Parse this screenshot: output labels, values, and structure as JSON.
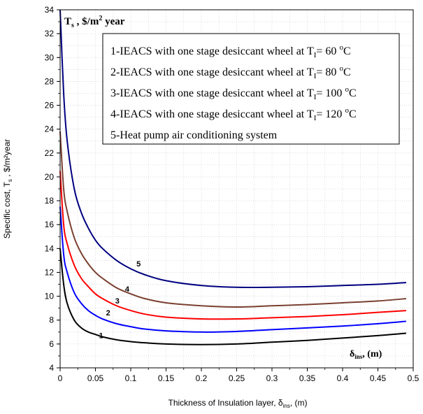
{
  "chart_data": {
    "type": "line",
    "title": "T",
    "title_sub": "s",
    "title_rest": " , $/m",
    "title_sup": "2",
    "title_end": " year",
    "xlabel": "Thickness of Insulation layer, δ",
    "xlabel_sub": "ins",
    "xlabel_end": ", (m)",
    "ylabel": "Specific cost, T",
    "ylabel_sub": "s",
    "ylabel_end": " , $/m²year",
    "inner_xlabel": "δ",
    "inner_xlabel_sub": "ins",
    "inner_xlabel_end": ", (m)",
    "xlim": [
      0,
      0.5
    ],
    "ylim": [
      4,
      34
    ],
    "x_ticks": [
      0,
      0.05,
      0.1,
      0.15,
      0.2,
      0.25,
      0.3,
      0.35,
      0.4,
      0.45,
      0.5
    ],
    "x_tick_labels": [
      "0",
      "0.05",
      "0.1",
      "0.15",
      "0.2",
      "0.25",
      "0.3",
      "0.35",
      "0.4",
      "0.45",
      "0.5"
    ],
    "y_ticks": [
      4,
      6,
      8,
      10,
      12,
      14,
      16,
      18,
      20,
      22,
      24,
      26,
      28,
      30,
      32,
      34
    ],
    "y_tick_labels": [
      "4",
      "6",
      "8",
      "10",
      "12",
      "14",
      "16",
      "18",
      "20",
      "22",
      "24",
      "26",
      "28",
      "30",
      "32",
      "34"
    ],
    "grid": true,
    "legend_position": "top-right",
    "legend": [
      {
        "pre": "1-IEACS with one stage desiccant wheel at T",
        "sub": "I",
        "mid": "= 60 ",
        "sup": "o",
        "post": "C"
      },
      {
        "pre": "2-IEACS with one stage desiccant wheel at T",
        "sub": "I",
        "mid": "= 80 ",
        "sup": "o",
        "post": "C"
      },
      {
        "pre": "3-IEACS with one stage desiccant wheel at T",
        "sub": "I",
        "mid": "= 100 ",
        "sup": "o",
        "post": "C"
      },
      {
        "pre": "4-IEACS with one stage desiccant wheel at T",
        "sub": "I",
        "mid": "= 120 ",
        "sup": "o",
        "post": "C"
      },
      {
        "pre": "5-Heat pump air conditioning system",
        "sub": "",
        "mid": "",
        "sup": "",
        "post": ""
      }
    ],
    "series": [
      {
        "label": "1",
        "color": "#000000",
        "label_at": [
          0.055,
          6.5
        ],
        "x": [
          0,
          0.005,
          0.01,
          0.02,
          0.03,
          0.04,
          0.05,
          0.06,
          0.08,
          0.1,
          0.12,
          0.15,
          0.2,
          0.25,
          0.3,
          0.35,
          0.4,
          0.45,
          0.49
        ],
        "y": [
          14.0,
          11.0,
          9.4,
          8.0,
          7.35,
          7.0,
          6.8,
          6.6,
          6.35,
          6.2,
          6.1,
          6.0,
          5.95,
          6.0,
          6.15,
          6.3,
          6.5,
          6.7,
          6.9
        ]
      },
      {
        "label": "2",
        "color": "#0000ff",
        "label_at": [
          0.065,
          8.4
        ],
        "x": [
          0,
          0.005,
          0.01,
          0.02,
          0.03,
          0.04,
          0.05,
          0.06,
          0.08,
          0.1,
          0.12,
          0.15,
          0.2,
          0.25,
          0.3,
          0.35,
          0.4,
          0.45,
          0.49
        ],
        "y": [
          17.5,
          13.5,
          12.0,
          10.3,
          9.4,
          8.8,
          8.4,
          8.1,
          7.7,
          7.45,
          7.25,
          7.1,
          7.0,
          7.05,
          7.2,
          7.35,
          7.5,
          7.7,
          7.9
        ]
      },
      {
        "label": "3",
        "color": "#ff0000",
        "label_at": [
          0.078,
          9.4
        ],
        "x": [
          0,
          0.005,
          0.01,
          0.02,
          0.03,
          0.04,
          0.05,
          0.06,
          0.08,
          0.1,
          0.12,
          0.15,
          0.2,
          0.25,
          0.3,
          0.35,
          0.4,
          0.45,
          0.49
        ],
        "y": [
          20.5,
          16.0,
          14.4,
          12.6,
          11.5,
          10.8,
          10.2,
          9.8,
          9.2,
          8.8,
          8.5,
          8.25,
          8.1,
          8.1,
          8.2,
          8.3,
          8.45,
          8.65,
          8.8
        ]
      },
      {
        "label": "4",
        "color": "#7a4030",
        "label_at": [
          0.092,
          10.4
        ],
        "x": [
          0,
          0.005,
          0.01,
          0.02,
          0.03,
          0.04,
          0.05,
          0.06,
          0.08,
          0.1,
          0.12,
          0.15,
          0.2,
          0.25,
          0.3,
          0.35,
          0.4,
          0.45,
          0.49
        ],
        "y": [
          23.8,
          19.0,
          17.1,
          14.9,
          13.6,
          12.7,
          12.0,
          11.5,
          10.7,
          10.2,
          9.8,
          9.45,
          9.2,
          9.1,
          9.2,
          9.3,
          9.45,
          9.6,
          9.8
        ]
      },
      {
        "label": "5",
        "color": "#000080",
        "label_at": [
          0.108,
          12.5
        ],
        "x": [
          0,
          0.005,
          0.01,
          0.02,
          0.03,
          0.04,
          0.05,
          0.06,
          0.08,
          0.1,
          0.12,
          0.15,
          0.2,
          0.25,
          0.3,
          0.35,
          0.4,
          0.45,
          0.49
        ],
        "y": [
          34.0,
          27.0,
          23.0,
          19.0,
          17.0,
          15.7,
          14.7,
          14.0,
          13.0,
          12.3,
          11.8,
          11.3,
          10.9,
          10.75,
          10.75,
          10.8,
          10.9,
          11.0,
          11.15
        ]
      }
    ]
  }
}
